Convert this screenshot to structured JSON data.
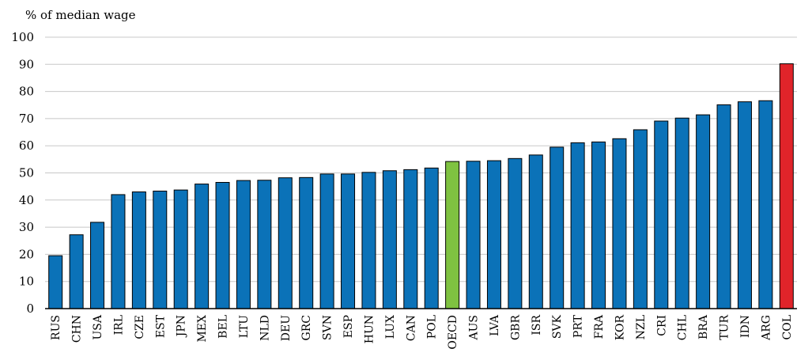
{
  "chart_data": {
    "type": "bar",
    "ylabel": "% of median wage",
    "ylim": [
      0,
      100
    ],
    "yticks": [
      0,
      10,
      20,
      30,
      40,
      50,
      60,
      70,
      80,
      90,
      100
    ],
    "grid": true,
    "categories": [
      "RUS",
      "CHN",
      "USA",
      "IRL",
      "CZE",
      "EST",
      "JPN",
      "MEX",
      "BEL",
      "LTU",
      "NLD",
      "DEU",
      "GRC",
      "SVN",
      "ESP",
      "HUN",
      "LUX",
      "CAN",
      "POL",
      "OECD",
      "AUS",
      "LVA",
      "GBR",
      "ISR",
      "SVK",
      "PRT",
      "FRA",
      "KOR",
      "NZL",
      "CRI",
      "CHL",
      "BRA",
      "TUR",
      "IDN",
      "ARG",
      "COL"
    ],
    "values": [
      19.5,
      27.2,
      31.8,
      42,
      43,
      43.3,
      43.7,
      45.9,
      46.5,
      47.2,
      47.3,
      48.2,
      48.3,
      49.6,
      49.6,
      50.2,
      50.8,
      51.2,
      51.8,
      54.2,
      54.3,
      54.5,
      55.3,
      56.6,
      59.5,
      61.1,
      61.4,
      62.6,
      65.9,
      69.1,
      70.2,
      71.4,
      75.1,
      76.2,
      76.6,
      90.2
    ],
    "colors": {
      "default": "#0b72b8",
      "highlight_oecd": "#7fc241",
      "highlight_col": "#e0242a",
      "grid": "#c8c8c8",
      "axis": "#000000"
    },
    "highlights": {
      "OECD": "highlight_oecd",
      "COL": "highlight_col"
    }
  }
}
